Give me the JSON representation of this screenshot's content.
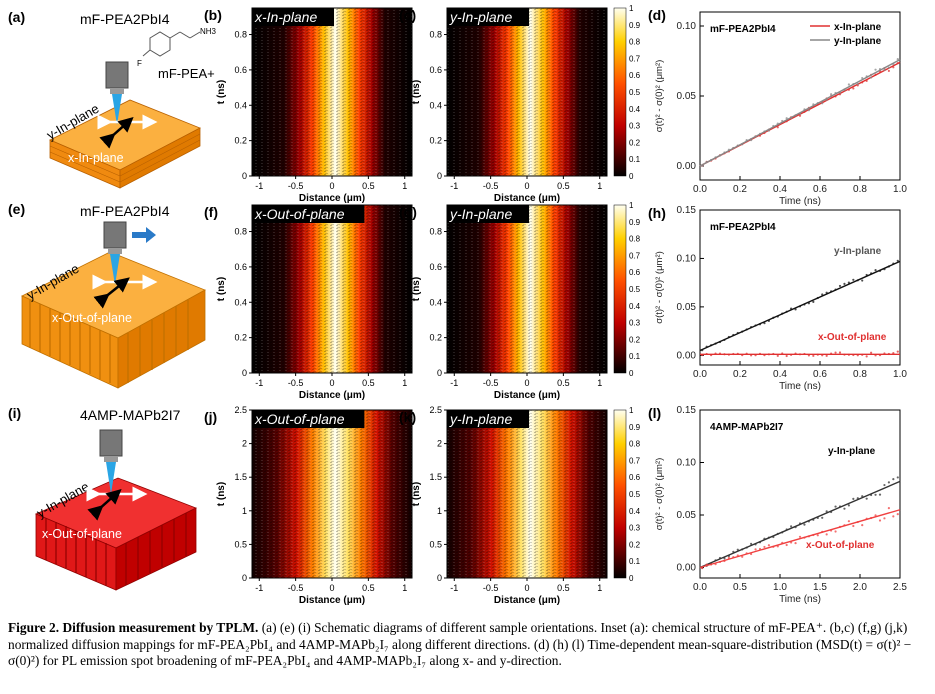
{
  "schematics": [
    {
      "label": "(a)",
      "material": "mF-PEA2PbI4",
      "inset_ion": "mF-PEA+",
      "inset_F": "F",
      "inset_amine": "NH3",
      "side_label": "y-In-plane",
      "top_label": "x-In-plane",
      "color": "#f5a623"
    },
    {
      "label": "(e)",
      "material": "mF-PEA2PbI4",
      "side_label": "y-In-plane",
      "top_label": "x-Out-of-plane",
      "color": "#f5a623"
    },
    {
      "label": "(i)",
      "material": "4AMP-MAPb2I7",
      "side_label": "y-In-plane",
      "top_label": "x-Out-of-plane",
      "color": "#e02020"
    }
  ],
  "heatmaps": [
    {
      "label": "(b)",
      "title": "x-In-plane",
      "xlabel": "Distance (μm)",
      "ylabel": "t (ns)",
      "xticks": [
        "-1",
        "-0.5",
        "0",
        "0.5",
        "1"
      ],
      "yticks": [
        "0",
        "0.2",
        "0.4",
        "0.6",
        "0.8"
      ],
      "ymax": 0.95
    },
    {
      "label": "(c)",
      "title": "y-In-plane",
      "xlabel": "Distance (μm)",
      "ylabel": "t (ns)",
      "xticks": [
        "-1",
        "-0.5",
        "0",
        "0.5",
        "1"
      ],
      "yticks": [
        "0",
        "0.2",
        "0.4",
        "0.6",
        "0.8"
      ],
      "ymax": 0.95
    },
    {
      "label": "(f)",
      "title": "x-Out-of-plane",
      "xlabel": "Distance (μm)",
      "ylabel": "t (ns)",
      "xticks": [
        "-1",
        "-0.5",
        "0",
        "0.5",
        "1"
      ],
      "yticks": [
        "0",
        "0.2",
        "0.4",
        "0.6",
        "0.8"
      ],
      "ymax": 0.95
    },
    {
      "label": "(g)",
      "title": "y-In-plane",
      "xlabel": "Distance (μm)",
      "ylabel": "t (ns)",
      "xticks": [
        "-1",
        "-0.5",
        "0",
        "0.5",
        "1"
      ],
      "yticks": [
        "0",
        "0.2",
        "0.4",
        "0.6",
        "0.8"
      ],
      "ymax": 0.95
    },
    {
      "label": "(j)",
      "title": "x-Out-of-plane",
      "xlabel": "Distance (μm)",
      "ylabel": "t (ns)",
      "xticks": [
        "-1",
        "-0.5",
        "0",
        "0.5",
        "1"
      ],
      "yticks": [
        "0",
        "0.5",
        "1",
        "1.5",
        "2",
        "2.5"
      ],
      "ymax": 2.5
    },
    {
      "label": "(k)",
      "title": "y-In-plane",
      "xlabel": "Distance (μm)",
      "ylabel": "t (ns)",
      "xticks": [
        "-1",
        "-0.5",
        "0",
        "0.5",
        "1"
      ],
      "yticks": [
        "0",
        "0.5",
        "1",
        "1.5",
        "2",
        "2.5"
      ],
      "ymax": 2.5
    }
  ],
  "colorbar": {
    "ticks": [
      "0",
      "0.1",
      "0.2",
      "0.3",
      "0.4",
      "0.5",
      "0.6",
      "0.7",
      "0.8",
      "0.9",
      "1"
    ]
  },
  "chart_data": [
    {
      "type": "scatter",
      "label": "(d)",
      "title": "mF-PEA2PbI4",
      "xlabel": "Time (ns)",
      "ylabel": "σ(t)² - σ(0)² (μm²)",
      "xlim": [
        0,
        1.0
      ],
      "ylim": [
        -0.01,
        0.11
      ],
      "xticks": [
        "0.0",
        "0.2",
        "0.4",
        "0.6",
        "0.8",
        "1.0"
      ],
      "yticks": [
        "0.00",
        "0.05",
        "0.10"
      ],
      "legend": "top-right",
      "series": [
        {
          "name": "x-In-plane",
          "color": "#e03030",
          "fit": [
            0,
            0.074
          ]
        },
        {
          "name": "y-In-plane",
          "color": "#888888",
          "fit": [
            0,
            0.076
          ]
        }
      ]
    },
    {
      "type": "scatter",
      "label": "(h)",
      "title": "mF-PEA2PbI4",
      "xlabel": "Time (ns)",
      "ylabel": "σ(t)² - σ(0)² (μm²)",
      "xlim": [
        0,
        1.0
      ],
      "ylim": [
        -0.01,
        0.15
      ],
      "xticks": [
        "0.0",
        "0.2",
        "0.4",
        "0.6",
        "0.8",
        "1.0"
      ],
      "yticks": [
        "0.00",
        "0.05",
        "0.10",
        "0.15"
      ],
      "series": [
        {
          "name": "y-In-plane",
          "color": "#111111",
          "fit": [
            0.005,
            0.097
          ]
        },
        {
          "name": "x-Out-of-plane",
          "color": "#e03030",
          "fit": [
            0.001,
            0.001
          ]
        }
      ]
    },
    {
      "type": "scatter",
      "label": "(l)",
      "title": "4AMP-MAPb2I7",
      "xlabel": "Time (ns)",
      "ylabel": "σ(t)² - σ(0)² (μm²)",
      "xlim": [
        0,
        2.5
      ],
      "ylim": [
        -0.01,
        0.15
      ],
      "xticks": [
        "0.0",
        "0.5",
        "1.0",
        "1.5",
        "2.0",
        "2.5"
      ],
      "yticks": [
        "0.00",
        "0.05",
        "0.10",
        "0.15"
      ],
      "series": [
        {
          "name": "y-In-plane",
          "color": "#333333",
          "fit": [
            0,
            0.082
          ]
        },
        {
          "name": "x-Out-of-plane",
          "color": "#f04040",
          "fit": [
            0,
            0.055
          ]
        }
      ]
    }
  ],
  "caption": {
    "figure": "Figure 2.",
    "heading": "Diffusion measurement by TPLM.",
    "text": "(a) (e) (i) Schematic diagrams of different sample orientations. Inset (a): chemical structure of mF-PEA⁺. (b,c) (f,g) (j,k) normalized diffusion mappings for mF-PEA₂PbI₄ and 4AMP-MAPb₂I₇ along different directions. (d) (h) (l) Time-dependent mean-square-distribution (MSD(t) = σ(t)² − σ(0)²) for PL emission spot broadening of mF-PEA₂PbI₄ and 4AMP-MAPb₂I₇ along x- and y-direction."
  }
}
